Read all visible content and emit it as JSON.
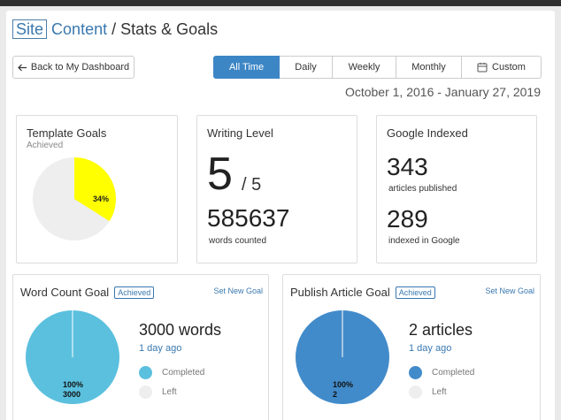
{
  "header": {
    "brand_box": "Site",
    "brand_word": "Content",
    "title_rest": " / Stats & Goals"
  },
  "nav": {
    "back_label": "Back to My Dashboard",
    "back_icon": "arrow-left-icon"
  },
  "tabs": [
    {
      "label": "All Time",
      "active": true
    },
    {
      "label": "Daily",
      "active": false
    },
    {
      "label": "Weekly",
      "active": false
    },
    {
      "label": "Monthly",
      "active": false
    },
    {
      "label": "Custom",
      "active": false,
      "icon": "calendar-icon"
    }
  ],
  "date_range": "October 1, 2016 - January 27, 2019",
  "template_goals": {
    "title": "Template Goals",
    "subtitle": "Achieved",
    "percent_label": "34%",
    "achieved_fraction": 0.34,
    "colors": {
      "achieved": "#ffff00",
      "rest": "#eeeeee"
    }
  },
  "writing_level": {
    "title": "Writing Level",
    "level": "5",
    "max": "/ 5",
    "words": "585637",
    "words_label": "words counted"
  },
  "google_indexed": {
    "title": "Google Indexed",
    "published": "343",
    "published_label": "articles published",
    "indexed": "289",
    "indexed_label": "indexed in Google"
  },
  "word_count_goal": {
    "title": "Word Count Goal",
    "badge": "Achieved",
    "set_new": "Set New Goal",
    "headline": "3000 words",
    "ago": "1 day ago",
    "legend_completed": "Completed",
    "legend_left": "Left",
    "pie_percent": "100%",
    "pie_value": "3000",
    "completed_fraction": 1.0,
    "colors": {
      "completed": "#5bc0de",
      "left": "#eeeeee"
    }
  },
  "publish_goal": {
    "title": "Publish Article Goal",
    "badge": "Achieved",
    "set_new": "Set New Goal",
    "headline": "2 articles",
    "ago": "1 day ago",
    "legend_completed": "Completed",
    "legend_left": "Left",
    "pie_percent": "100%",
    "pie_value": "2",
    "completed_fraction": 1.0,
    "colors": {
      "completed": "#428bca",
      "left": "#eeeeee"
    }
  }
}
